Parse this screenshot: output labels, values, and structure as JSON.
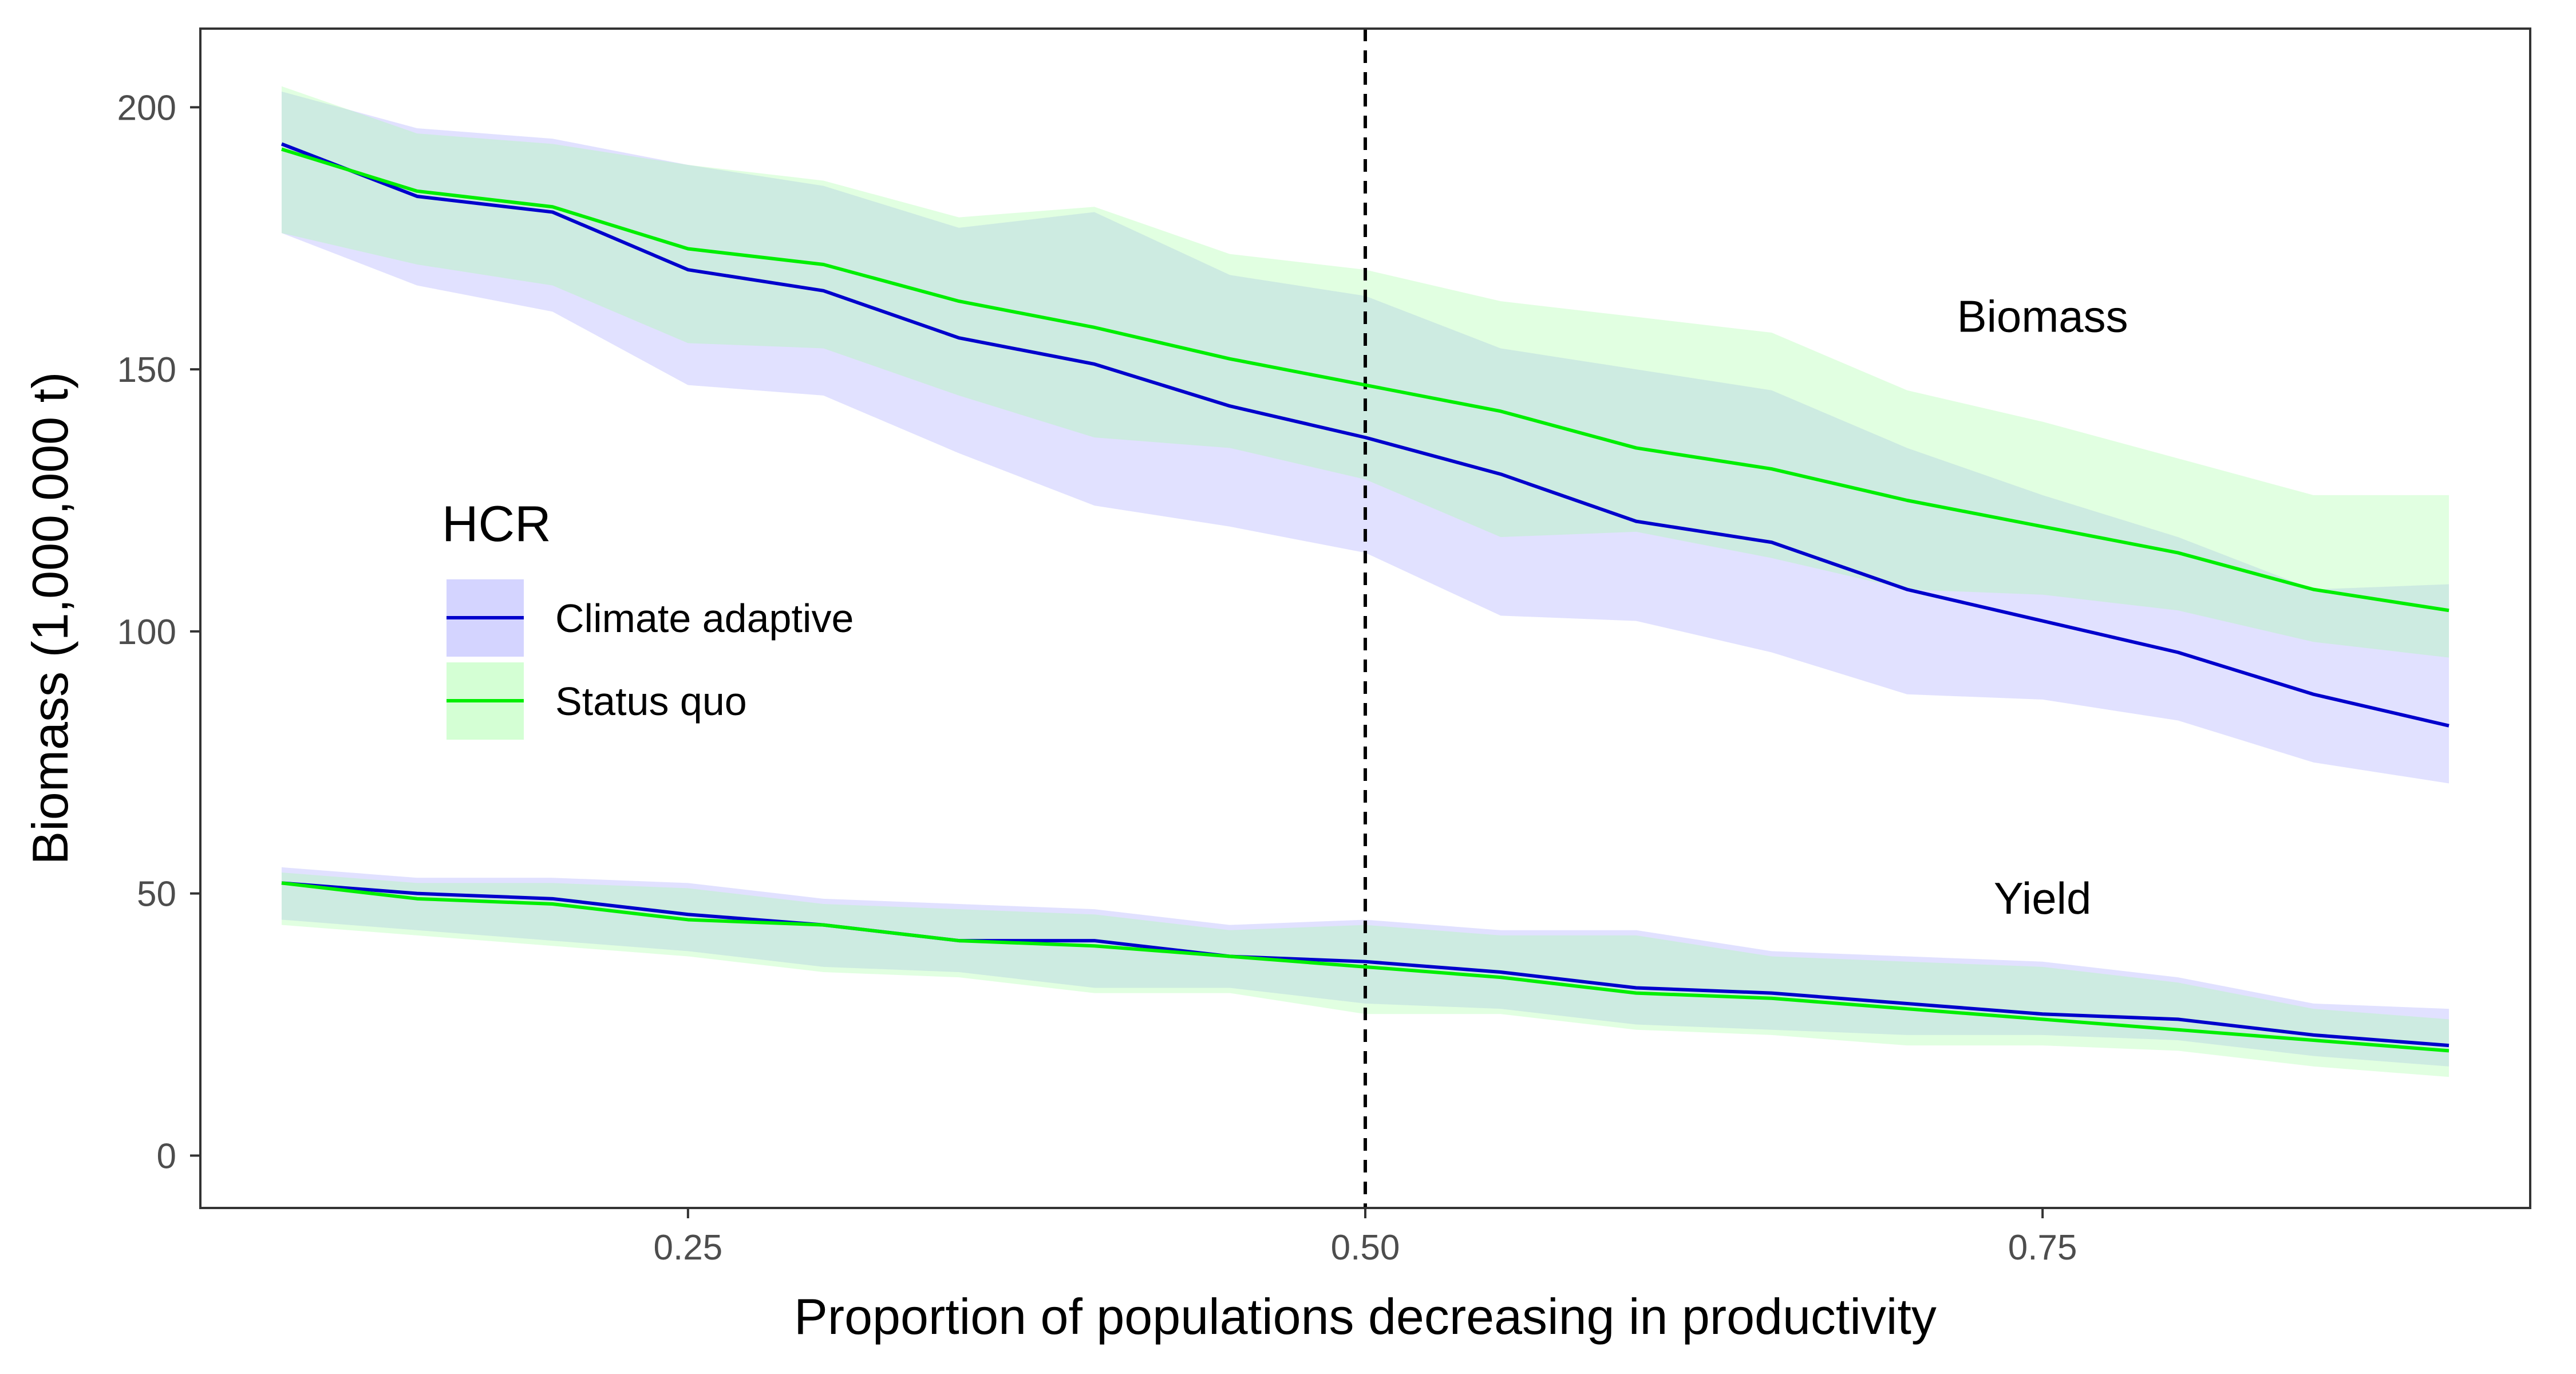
{
  "chart_data": {
    "type": "line",
    "xlabel": "Proportion of populations decreasing in productivity",
    "ylabel": "Biomass (1,000,000 t)",
    "xlim": [
      0.07,
      0.93
    ],
    "ylim": [
      -10,
      215
    ],
    "x_ticks": [
      0.25,
      0.5,
      0.75
    ],
    "x_tick_labels": [
      "0.25",
      "0.50",
      "0.75"
    ],
    "y_ticks": [
      0,
      50,
      100,
      150,
      200
    ],
    "y_tick_labels": [
      "0",
      "50",
      "100",
      "150",
      "200"
    ],
    "grid": false,
    "vline": {
      "x": 0.5,
      "style": "dashed",
      "color": "#000000"
    },
    "legend": {
      "title": "HCR",
      "placement": "left-middle",
      "entries": [
        "Climate adaptive",
        "Status quo"
      ]
    },
    "annotations": [
      {
        "text": "Biomass",
        "x": 0.75,
        "y": 160
      },
      {
        "text": "Yield",
        "x": 0.75,
        "y": 49
      }
    ],
    "series": [
      {
        "name": "Climate adaptive",
        "group": "Biomass",
        "color": "#0000cc",
        "band_color": "#aaaaff",
        "x": [
          0.1,
          0.15,
          0.2,
          0.25,
          0.3,
          0.35,
          0.4,
          0.45,
          0.5,
          0.55,
          0.6,
          0.65,
          0.7,
          0.75,
          0.8,
          0.85,
          0.9
        ],
        "values": [
          193,
          183,
          180,
          169,
          165,
          156,
          151,
          143,
          137,
          130,
          121,
          117,
          108,
          102,
          96,
          88,
          82
        ],
        "lower": [
          176,
          166,
          161,
          147,
          145,
          134,
          124,
          120,
          115,
          103,
          102,
          96,
          88,
          87,
          83,
          75,
          71
        ],
        "upper": [
          203,
          196,
          194,
          189,
          185,
          177,
          180,
          168,
          164,
          154,
          150,
          146,
          135,
          126,
          118,
          108,
          109
        ]
      },
      {
        "name": "Status quo",
        "group": "Biomass",
        "color": "#00ee00",
        "band_color": "#aaffaa",
        "x": [
          0.1,
          0.15,
          0.2,
          0.25,
          0.3,
          0.35,
          0.4,
          0.45,
          0.5,
          0.55,
          0.6,
          0.65,
          0.7,
          0.75,
          0.8,
          0.85,
          0.9
        ],
        "values": [
          192,
          184,
          181,
          173,
          170,
          163,
          158,
          152,
          147,
          142,
          135,
          131,
          125,
          120,
          115,
          108,
          104
        ],
        "lower": [
          176,
          170,
          166,
          155,
          154,
          145,
          137,
          135,
          129,
          118,
          119,
          114,
          108,
          107,
          104,
          98,
          95
        ],
        "upper": [
          204,
          195,
          193,
          189,
          186,
          179,
          181,
          172,
          169,
          163,
          160,
          157,
          146,
          140,
          133,
          126,
          126
        ]
      },
      {
        "name": "Climate adaptive",
        "group": "Yield",
        "color": "#0000cc",
        "band_color": "#aaaaff",
        "x": [
          0.1,
          0.15,
          0.2,
          0.25,
          0.3,
          0.35,
          0.4,
          0.45,
          0.5,
          0.55,
          0.6,
          0.65,
          0.7,
          0.75,
          0.8,
          0.85,
          0.9
        ],
        "values": [
          52,
          50,
          49,
          46,
          44,
          41,
          41,
          38,
          37,
          35,
          32,
          31,
          29,
          27,
          26,
          23,
          21
        ],
        "lower": [
          45,
          43,
          41,
          39,
          36,
          35,
          32,
          32,
          29,
          28,
          25,
          24,
          23,
          23,
          22,
          19,
          17
        ],
        "upper": [
          55,
          53,
          53,
          52,
          49,
          48,
          47,
          44,
          45,
          43,
          43,
          39,
          38,
          37,
          34,
          29,
          28
        ]
      },
      {
        "name": "Status quo",
        "group": "Yield",
        "color": "#00ee00",
        "band_color": "#aaffaa",
        "x": [
          0.1,
          0.15,
          0.2,
          0.25,
          0.3,
          0.35,
          0.4,
          0.45,
          0.5,
          0.55,
          0.6,
          0.65,
          0.7,
          0.75,
          0.8,
          0.85,
          0.9
        ],
        "values": [
          52,
          49,
          48,
          45,
          44,
          41,
          40,
          38,
          36,
          34,
          31,
          30,
          28,
          26,
          24,
          22,
          20
        ],
        "lower": [
          44,
          42,
          40,
          38,
          35,
          34,
          31,
          31,
          27,
          27,
          24,
          23,
          21,
          21,
          20,
          17,
          15
        ],
        "upper": [
          54,
          52,
          52,
          51,
          48,
          47,
          46,
          43,
          44,
          42,
          42,
          38,
          37,
          36,
          33,
          28,
          26
        ]
      }
    ]
  }
}
